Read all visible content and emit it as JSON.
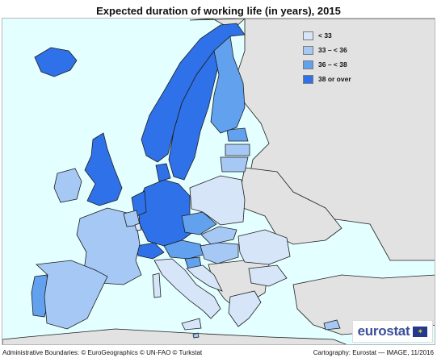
{
  "title": "Expected duration of working life (in years), 2015",
  "legend": {
    "items": [
      {
        "label": "< 33",
        "color": "#d6e5f8"
      },
      {
        "label": "33 – < 36",
        "color": "#a6c8f4"
      },
      {
        "label": "36 – < 38",
        "color": "#62a1ee"
      },
      {
        "label": "38 or over",
        "color": "#2f71e8"
      }
    ]
  },
  "colors": {
    "sea": "#e4ffff",
    "non_eu_land": "#e2e2e2",
    "border": "#1e1e1e",
    "frame": "#b8b8b8"
  },
  "logo": {
    "text": "eurostat",
    "flag_icon": "eu-flag-icon"
  },
  "footer": {
    "left": "Administrative Boundaries: © EuroGeographics © UN-FAO © Turkstat",
    "right": "Cartography: Eurostat — IMAGE, 11/2016"
  }
}
